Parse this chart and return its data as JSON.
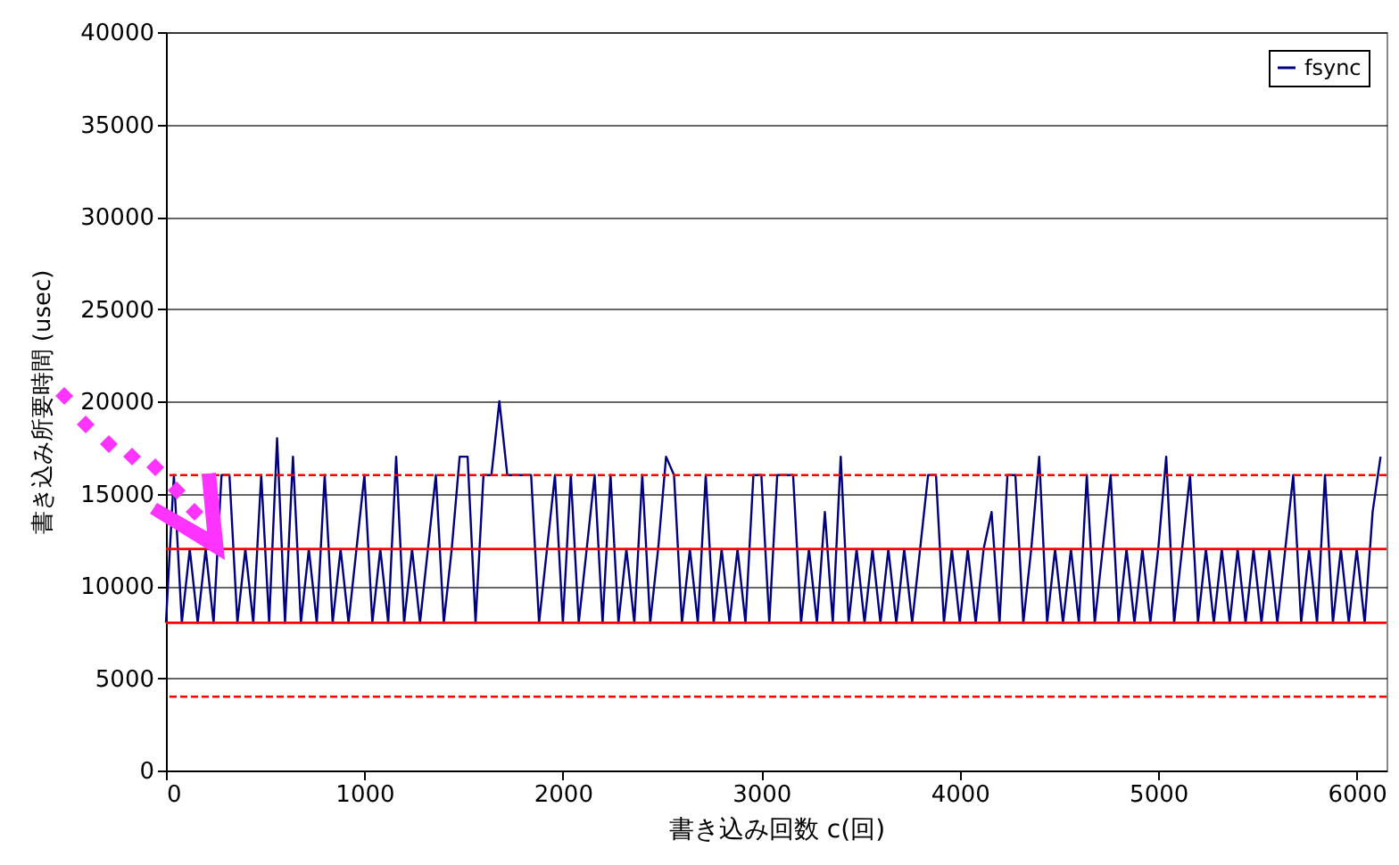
{
  "chart_data": {
    "type": "line",
    "xlabel": "書き込み回数 c(回)",
    "ylabel": "書き込み所要時間 (usec)",
    "x": [
      0,
      40,
      80,
      120,
      160,
      200,
      240,
      280,
      320,
      360,
      400,
      440,
      480,
      520,
      560,
      600,
      640,
      680,
      720,
      760,
      800,
      840,
      880,
      920,
      960,
      1000,
      1040,
      1080,
      1120,
      1160,
      1200,
      1240,
      1280,
      1320,
      1360,
      1400,
      1440,
      1480,
      1520,
      1560,
      1600,
      1640,
      1680,
      1720,
      1760,
      1800,
      1840,
      1880,
      1920,
      1960,
      2000,
      2040,
      2080,
      2120,
      2160,
      2200,
      2240,
      2280,
      2320,
      2360,
      2400,
      2440,
      2480,
      2520,
      2560,
      2600,
      2640,
      2680,
      2720,
      2760,
      2800,
      2840,
      2880,
      2920,
      2960,
      3000,
      3040,
      3080,
      3120,
      3160,
      3200,
      3240,
      3280,
      3320,
      3360,
      3400,
      3440,
      3480,
      3520,
      3560,
      3600,
      3640,
      3680,
      3720,
      3760,
      3800,
      3840,
      3880,
      3920,
      3960,
      4000,
      4040,
      4080,
      4120,
      4160,
      4200,
      4240,
      4280,
      4320,
      4360,
      4400,
      4440,
      4480,
      4520,
      4560,
      4600,
      4640,
      4680,
      4720,
      4760,
      4800,
      4840,
      4880,
      4920,
      4960,
      5000,
      5040,
      5080,
      5120,
      5160,
      5200,
      5240,
      5280,
      5320,
      5360,
      5400,
      5440,
      5480,
      5520,
      5560,
      5600,
      5640,
      5680,
      5720,
      5760,
      5800,
      5840,
      5880,
      5920,
      5960,
      6000,
      6040,
      6080,
      6120
    ],
    "series": [
      {
        "name": "fsync",
        "color": "#000080",
        "values": [
          8000,
          16000,
          8000,
          12000,
          8000,
          12000,
          8000,
          16000,
          16000,
          8000,
          12000,
          8000,
          16000,
          8000,
          18000,
          8000,
          17000,
          8000,
          12000,
          8000,
          16000,
          8000,
          12000,
          8000,
          12000,
          16000,
          8000,
          12000,
          8000,
          17000,
          8000,
          12000,
          8000,
          12000,
          16000,
          8000,
          12000,
          17000,
          17000,
          8000,
          16000,
          16000,
          20000,
          16000,
          16000,
          16000,
          16000,
          8000,
          12000,
          16000,
          8000,
          16000,
          8000,
          12000,
          16000,
          8000,
          16000,
          8000,
          12000,
          8000,
          16000,
          8000,
          12000,
          17000,
          16000,
          8000,
          12000,
          8000,
          16000,
          8000,
          12000,
          8000,
          12000,
          8000,
          16000,
          16000,
          8000,
          16000,
          16000,
          16000,
          8000,
          12000,
          8000,
          14000,
          8000,
          17000,
          8000,
          12000,
          8000,
          12000,
          8000,
          12000,
          8000,
          12000,
          8000,
          12000,
          16000,
          16000,
          8000,
          12000,
          8000,
          12000,
          8000,
          12000,
          14000,
          8000,
          16000,
          16000,
          8000,
          12000,
          17000,
          8000,
          12000,
          8000,
          12000,
          8000,
          16000,
          8000,
          12000,
          16000,
          8000,
          12000,
          8000,
          12000,
          8000,
          12000,
          17000,
          8000,
          12000,
          16000,
          8000,
          12000,
          8000,
          12000,
          8000,
          12000,
          8000,
          12000,
          8000,
          12000,
          8000,
          12000,
          16000,
          8000,
          12000,
          8000,
          16000,
          8000,
          12000,
          8000,
          12000,
          8000,
          14000,
          17000
        ]
      }
    ],
    "ref_lines": [
      {
        "axis": "y",
        "value": 16000,
        "color": "#ff0000",
        "line_style": "dashed"
      },
      {
        "axis": "y",
        "value": 12000,
        "color": "#ff0000",
        "line_style": "solid"
      },
      {
        "axis": "y",
        "value": 8000,
        "color": "#ff0000",
        "line_style": "solid"
      },
      {
        "axis": "y",
        "value": 4000,
        "color": "#ff0000",
        "line_style": "dashed"
      }
    ],
    "xlim": [
      0,
      6150
    ],
    "xticks": [
      0,
      1000,
      2000,
      3000,
      4000,
      5000,
      6000
    ],
    "ylim": [
      0,
      40000
    ],
    "yticks": [
      0,
      5000,
      10000,
      15000,
      20000,
      25000,
      30000,
      35000,
      40000
    ],
    "grid": "y",
    "legend": "top right",
    "line_style": "solid",
    "marker": "none"
  }
}
